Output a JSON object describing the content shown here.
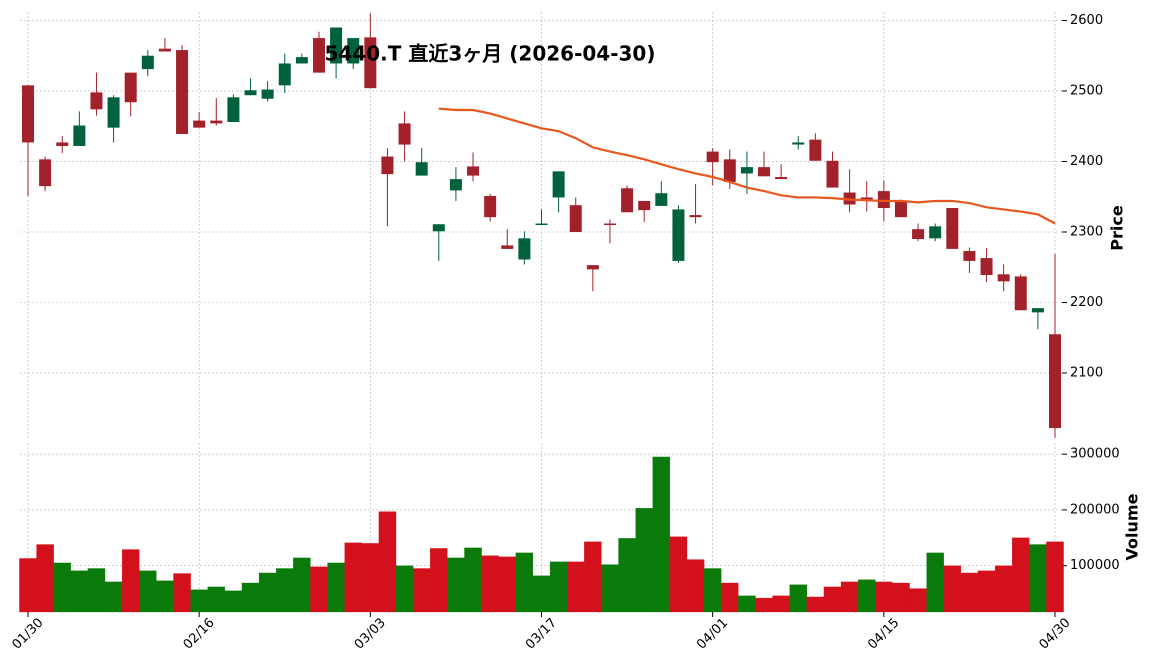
{
  "chart_data": {
    "type": "candlestick",
    "title": "5440.T 直近3ヶ月 (2026-04-30)",
    "categories": [
      "01/30",
      null,
      null,
      null,
      null,
      null,
      null,
      null,
      null,
      null,
      "02/16",
      null,
      null,
      null,
      null,
      null,
      null,
      null,
      null,
      null,
      "03/03",
      null,
      null,
      null,
      null,
      null,
      null,
      null,
      null,
      null,
      "03/17",
      null,
      null,
      null,
      null,
      null,
      null,
      null,
      null,
      null,
      "04/01",
      null,
      null,
      null,
      null,
      null,
      null,
      null,
      null,
      null,
      "04/15",
      null,
      null,
      null,
      null,
      null,
      null,
      null,
      null,
      null,
      "04/30"
    ],
    "open": [
      2508,
      2403,
      2427,
      2422,
      2498,
      2448,
      2526,
      2531,
      2560,
      2558,
      2458,
      2458,
      2456,
      2494,
      2489,
      2508,
      2539,
      2575,
      2539,
      2539,
      2576,
      2407,
      2454,
      2380,
      2301,
      2359,
      2393,
      2351,
      2281,
      2261,
      2311,
      2349,
      2338,
      2253,
      2312,
      2362,
      2344,
      2337,
      2259,
      2324,
      2414,
      2403,
      2383,
      2392,
      2378,
      2424,
      2431,
      2401,
      2356,
      2349,
      2358,
      2344,
      2304,
      2291,
      2334,
      2273,
      2263,
      2240,
      2237,
      2186,
      2155
    ],
    "high": [
      2508,
      2407,
      2436,
      2471,
      2526,
      2494,
      2526,
      2558,
      2575,
      2565,
      2470,
      2490,
      2495,
      2518,
      2514,
      2553,
      2553,
      2584,
      2590,
      2575,
      2610,
      2419,
      2471,
      2419,
      2311,
      2392,
      2413,
      2354,
      2304,
      2301,
      2332,
      2386,
      2349,
      2253,
      2318,
      2366,
      2344,
      2372,
      2338,
      2368,
      2419,
      2417,
      2414,
      2414,
      2396,
      2436,
      2440,
      2414,
      2389,
      2372,
      2373,
      2346,
      2312,
      2312,
      2334,
      2278,
      2277,
      2254,
      2240,
      2192,
      2269
    ],
    "low": [
      2351,
      2358,
      2412,
      2422,
      2465,
      2427,
      2464,
      2521,
      2556,
      2439,
      2448,
      2451,
      2456,
      2494,
      2485,
      2497,
      2539,
      2526,
      2518,
      2531,
      2504,
      2308,
      2400,
      2380,
      2259,
      2344,
      2372,
      2315,
      2276,
      2254,
      2311,
      2328,
      2300,
      2216,
      2284,
      2328,
      2314,
      2337,
      2256,
      2312,
      2366,
      2361,
      2354,
      2379,
      2375,
      2417,
      2401,
      2363,
      2328,
      2329,
      2315,
      2321,
      2287,
      2287,
      2276,
      2242,
      2229,
      2216,
      2189,
      2162,
      2008
    ],
    "close": [
      2427,
      2365,
      2422,
      2451,
      2474,
      2491,
      2484,
      2550,
      2556,
      2439,
      2448,
      2454,
      2491,
      2501,
      2502,
      2539,
      2548,
      2526,
      2590,
      2575,
      2504,
      2382,
      2424,
      2399,
      2311,
      2375,
      2380,
      2321,
      2276,
      2291,
      2312,
      2386,
      2300,
      2247,
      2310,
      2328,
      2331,
      2355,
      2332,
      2321,
      2399,
      2371,
      2392,
      2379,
      2375,
      2427,
      2401,
      2363,
      2339,
      2344,
      2334,
      2321,
      2290,
      2308,
      2276,
      2259,
      2239,
      2230,
      2189,
      2192,
      2022
    ],
    "up_color": "#00623c",
    "down_color": "#a2212b",
    "ma": {
      "color": "#e8581e",
      "values": [
        null,
        null,
        null,
        null,
        null,
        null,
        null,
        null,
        null,
        null,
        null,
        null,
        null,
        null,
        null,
        null,
        null,
        null,
        null,
        null,
        null,
        null,
        null,
        null,
        2475,
        2473,
        2473,
        2468,
        2461,
        2454,
        2447,
        2443,
        2433,
        2420,
        2414,
        2409,
        2403,
        2396,
        2389,
        2383,
        2378,
        2371,
        2363,
        2358,
        2352,
        2349,
        2349,
        2348,
        2346,
        2345,
        2344,
        2344,
        2342,
        2344,
        2344,
        2341,
        2335,
        2332,
        2329,
        2325,
        2312
      ]
    },
    "ylabel": "Price",
    "ylim": [
      2005,
      2612
    ],
    "yticks": [
      2100,
      2200,
      2300,
      2400,
      2500,
      2600
    ],
    "grid": true,
    "volume": {
      "ylabel": "Volume",
      "up_color": "#0a7a0a",
      "down_color": "#d3111c",
      "ylim": [
        17000,
        320000
      ],
      "yticks": [
        100000,
        200000,
        300000
      ],
      "values": [
        113000,
        138000,
        105000,
        91000,
        95000,
        71000,
        129000,
        91000,
        73000,
        86000,
        57000,
        62000,
        55000,
        69000,
        87000,
        95000,
        114000,
        98000,
        105000,
        141000,
        140000,
        197000,
        100000,
        95000,
        131000,
        114000,
        132000,
        118000,
        116000,
        123000,
        82000,
        107000,
        107000,
        143000,
        102000,
        149000,
        203000,
        295000,
        152000,
        111000,
        95000,
        69000,
        46000,
        42000,
        46000,
        66000,
        44000,
        62000,
        71000,
        75000,
        71000,
        69000,
        59000,
        123000,
        100000,
        87000,
        91000,
        100000,
        150000,
        138000,
        143000
      ]
    }
  }
}
